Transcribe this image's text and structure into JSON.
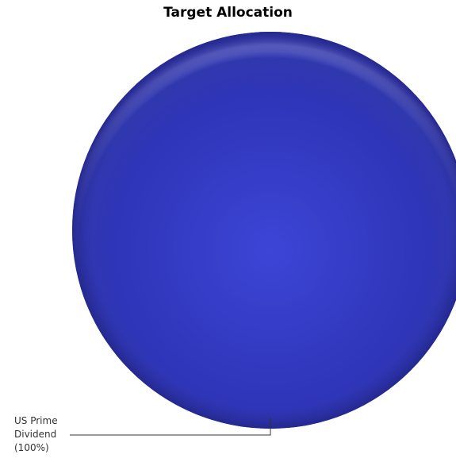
{
  "chart_data": {
    "type": "pie",
    "title": "Target Allocation",
    "slices": [
      {
        "label": "US Prime Dividend",
        "label_lines": [
          "US Prime",
          "Dividend",
          "(100%)"
        ],
        "value": 100,
        "percent_label": "(100%)",
        "color": "#2b2fa8"
      }
    ],
    "legend": "none",
    "label_placement": "bottom-left callout"
  }
}
